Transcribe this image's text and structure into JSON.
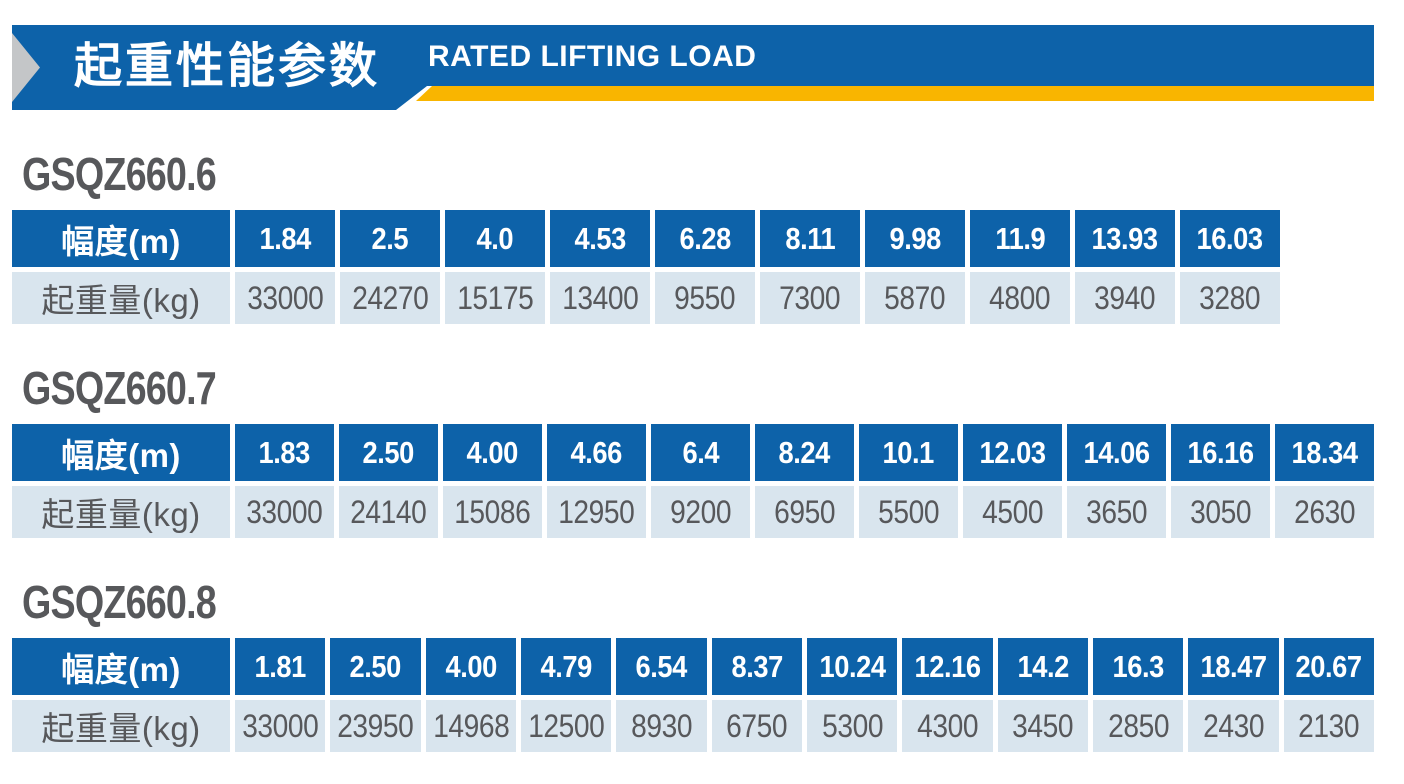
{
  "header": {
    "title_zh": "起重性能参数",
    "title_en": "RATED LIFTING LOAD"
  },
  "table_labels": {
    "radius": "幅度(m)",
    "load": "起重量(kg)"
  },
  "models": [
    {
      "name": "GSQZ660.6",
      "radius_m": [
        "1.84",
        "2.5",
        "4.0",
        "4.53",
        "6.28",
        "8.11",
        "9.98",
        "11.9",
        "13.93",
        "16.03"
      ],
      "load_kg": [
        "33000",
        "24270",
        "15175",
        "13400",
        "9550",
        "7300",
        "5870",
        "4800",
        "3940",
        "3280"
      ]
    },
    {
      "name": "GSQZ660.7",
      "radius_m": [
        "1.83",
        "2.50",
        "4.00",
        "4.66",
        "6.4",
        "8.24",
        "10.1",
        "12.03",
        "14.06",
        "16.16",
        "18.34"
      ],
      "load_kg": [
        "33000",
        "24140",
        "15086",
        "12950",
        "9200",
        "6950",
        "5500",
        "4500",
        "3650",
        "3050",
        "2630"
      ]
    },
    {
      "name": "GSQZ660.8",
      "radius_m": [
        "1.81",
        "2.50",
        "4.00",
        "4.79",
        "6.54",
        "8.37",
        "10.24",
        "12.16",
        "14.2",
        "16.3",
        "18.47",
        "20.67"
      ],
      "load_kg": [
        "33000",
        "23950",
        "14968",
        "12500",
        "8930",
        "6750",
        "5300",
        "4300",
        "3450",
        "2850",
        "2430",
        "2130"
      ]
    }
  ],
  "colors": {
    "banner_blue": "#0d62a9",
    "accent_yellow": "#f9b500",
    "chevron_gray": "#c4c6c8",
    "row_light_blue": "#d9e5ee",
    "text_gray": "#57585b"
  }
}
